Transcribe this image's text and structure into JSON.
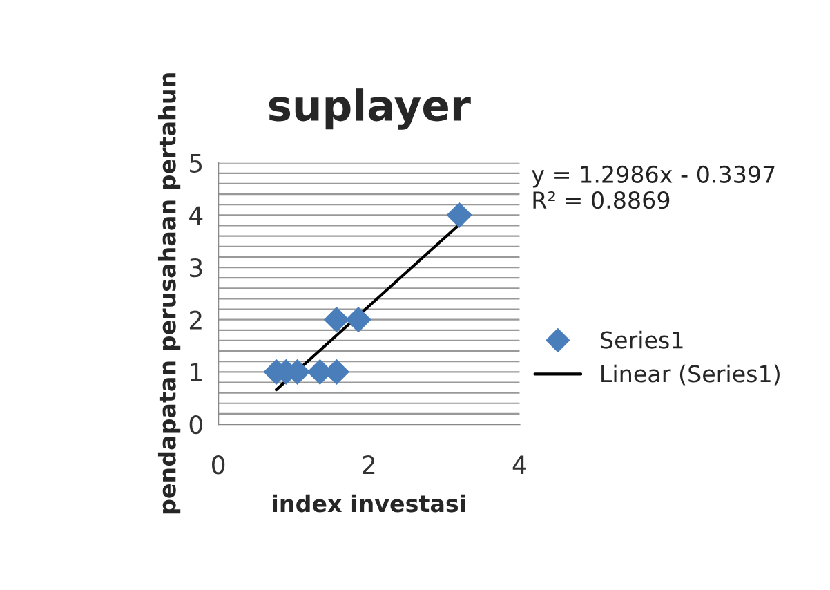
{
  "chart_data": {
    "type": "scatter",
    "title": "suplayer",
    "xlabel": "index investasi",
    "ylabel": "pendapatan perusahaan pertahun",
    "series": [
      {
        "name": "Series1",
        "type": "scatter",
        "color": "#4a7ebb",
        "marker": "diamond",
        "x": [
          0.77,
          0.9,
          1.05,
          1.35,
          1.57,
          1.57,
          1.86,
          3.2
        ],
        "values": [
          1,
          1,
          1,
          1,
          1,
          2,
          2,
          4
        ]
      },
      {
        "name": "Linear (Series1)",
        "type": "line",
        "color": "#000000",
        "marker": "none",
        "line_style": "solid",
        "x": [
          0.77,
          3.2
        ],
        "values": [
          0.66,
          3.82
        ]
      }
    ],
    "annotations": [
      "y = 1.2986x - 0.3397\nR² = 0.8869"
    ],
    "xlim": [
      0,
      4
    ],
    "xticks": [
      0,
      2,
      4
    ],
    "ylim": [
      0,
      5
    ],
    "yticks": [
      0,
      {
        "value": 0.2,
        "label": null
      },
      {
        "value": 0.4,
        "label": null
      },
      {
        "value": 0.6,
        "label": null
      },
      {
        "value": 0.8,
        "label": null
      },
      1,
      {
        "value": 1.2,
        "label": null
      },
      {
        "value": 1.4,
        "label": null
      },
      {
        "value": 1.6,
        "label": null
      },
      {
        "value": 1.8,
        "label": null
      },
      2,
      {
        "value": 2.2,
        "label": null
      },
      {
        "value": 2.4,
        "label": null
      },
      {
        "value": 2.6,
        "label": null
      },
      {
        "value": 2.8,
        "label": null
      },
      3,
      {
        "value": 3.2,
        "label": null
      },
      {
        "value": 3.4,
        "label": null
      },
      {
        "value": 3.6,
        "label": null
      },
      {
        "value": 3.8,
        "label": null
      },
      4,
      {
        "value": 4.2,
        "label": null
      },
      {
        "value": 4.4,
        "label": null
      },
      {
        "value": 4.6,
        "label": null
      },
      {
        "value": 4.8,
        "label": null
      },
      5
    ],
    "grid": "y",
    "legend": "right"
  }
}
